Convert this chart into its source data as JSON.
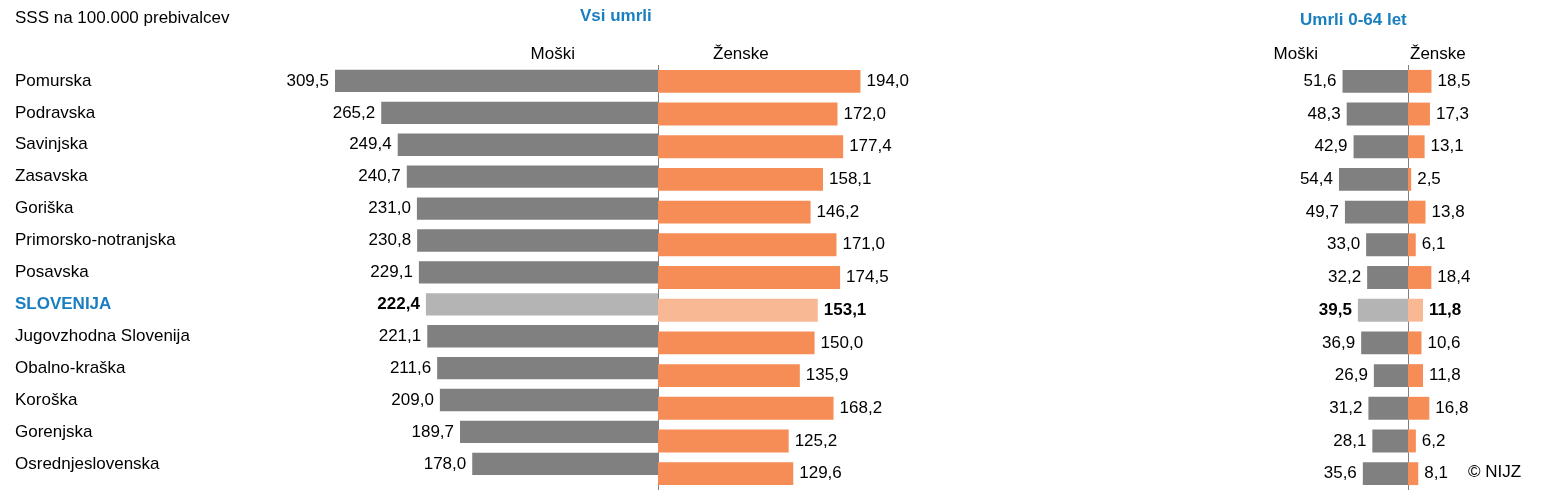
{
  "chart_data": [
    {
      "type": "bar",
      "orientation": "horizontal",
      "title": "Vsi umrli",
      "subtitle": "Moški",
      "annotations": [
        "SSS na 100.000 prebivalcev"
      ],
      "categories": [
        "Pomurska",
        "Podravska",
        "Savinjska",
        "Zasavska",
        "Goriška",
        "Primorsko-notranjska",
        "Posavska",
        "SLOVENIJA",
        "Jugovzhodna Slovenija",
        "Obalno-kraška",
        "Koroška",
        "Gorenjska",
        "Osrednjeslovenska"
      ],
      "values": [
        309.5,
        265.2,
        249.4,
        240.7,
        231.0,
        230.8,
        229.1,
        222.4,
        221.1,
        211.6,
        209.0,
        189.7,
        178.0
      ],
      "value_labels": [
        "309,5",
        "265,2",
        "249,4",
        "240,7",
        "231,0",
        "230,8",
        "229,1",
        "222,4",
        "221,1",
        "211,6",
        "209,0",
        "189,7",
        "178,0"
      ],
      "colors": [
        "#808080",
        "#808080",
        "#808080",
        "#808080",
        "#808080",
        "#808080",
        "#808080",
        "#b4b4b4",
        "#808080",
        "#808080",
        "#808080",
        "#808080",
        "#808080"
      ],
      "tick_labels": "y"
    },
    {
      "type": "bar",
      "orientation": "horizontal",
      "subtitle": "Ženske",
      "categories": [
        null,
        null,
        null,
        null,
        null,
        null,
        null,
        null,
        null,
        null,
        null,
        null,
        null
      ],
      "values": [
        194.0,
        172.0,
        177.4,
        158.1,
        146.2,
        171.0,
        174.5,
        153.1,
        150.0,
        135.9,
        168.2,
        125.2,
        129.6
      ],
      "value_labels": [
        "194,0",
        "172,0",
        "177,4",
        "158,1",
        "146,2",
        "171,0",
        "174,5",
        "153,1",
        "150,0",
        "135,9",
        "168,2",
        "125,2",
        "129,6"
      ],
      "colors": [
        "#f68d57",
        "#f68d57",
        "#f68d57",
        "#f68d57",
        "#f68d57",
        "#f68d57",
        "#f68d57",
        "#f8b894",
        "#f68d57",
        "#f68d57",
        "#f68d57",
        "#f68d57",
        "#f68d57"
      ],
      "tick_labels": false
    },
    {
      "type": "bar",
      "orientation": "horizontal",
      "title": "Umrli 0-64 let",
      "subtitle": "Moški",
      "categories": [
        null,
        null,
        null,
        null,
        null,
        null,
        null,
        null,
        null,
        null,
        null,
        null,
        null
      ],
      "values": [
        51.6,
        48.3,
        42.9,
        54.4,
        49.7,
        33.0,
        32.2,
        39.5,
        36.9,
        26.9,
        31.2,
        28.1,
        35.6
      ],
      "value_labels": [
        "51,6",
        "48,3",
        "42,9",
        "54,4",
        "49,7",
        "33,0",
        "32,2",
        "39,5",
        "36,9",
        "26,9",
        "31,2",
        "28,1",
        "35,6"
      ],
      "colors": [
        "#808080",
        "#808080",
        "#808080",
        "#808080",
        "#808080",
        "#808080",
        "#808080",
        "#b4b4b4",
        "#808080",
        "#808080",
        "#808080",
        "#808080",
        "#808080"
      ],
      "tick_labels": false
    },
    {
      "type": "bar",
      "orientation": "horizontal",
      "subtitle": "Ženske",
      "annotations": [
        "© NIJZ"
      ],
      "categories": [
        null,
        null,
        null,
        null,
        null,
        null,
        null,
        null,
        null,
        null,
        null,
        null,
        null
      ],
      "values": [
        18.5,
        17.3,
        13.1,
        2.5,
        13.8,
        6.1,
        18.4,
        11.8,
        10.6,
        11.8,
        16.8,
        6.2,
        8.1
      ],
      "value_labels": [
        "18,5",
        "17,3",
        "13,1",
        "2,5",
        "13,8",
        "6,1",
        "18,4",
        "11,8",
        "10,6",
        "11,8",
        "16,8",
        "6,2",
        "8,1"
      ],
      "colors": [
        "#f68d57",
        "#f68d57",
        "#f68d57",
        "#f68d57",
        "#f68d57",
        "#f68d57",
        "#f68d57",
        "#f8b894",
        "#f68d57",
        "#f68d57",
        "#f68d57",
        "#f68d57",
        "#f68d57"
      ],
      "tick_labels": false
    }
  ]
}
